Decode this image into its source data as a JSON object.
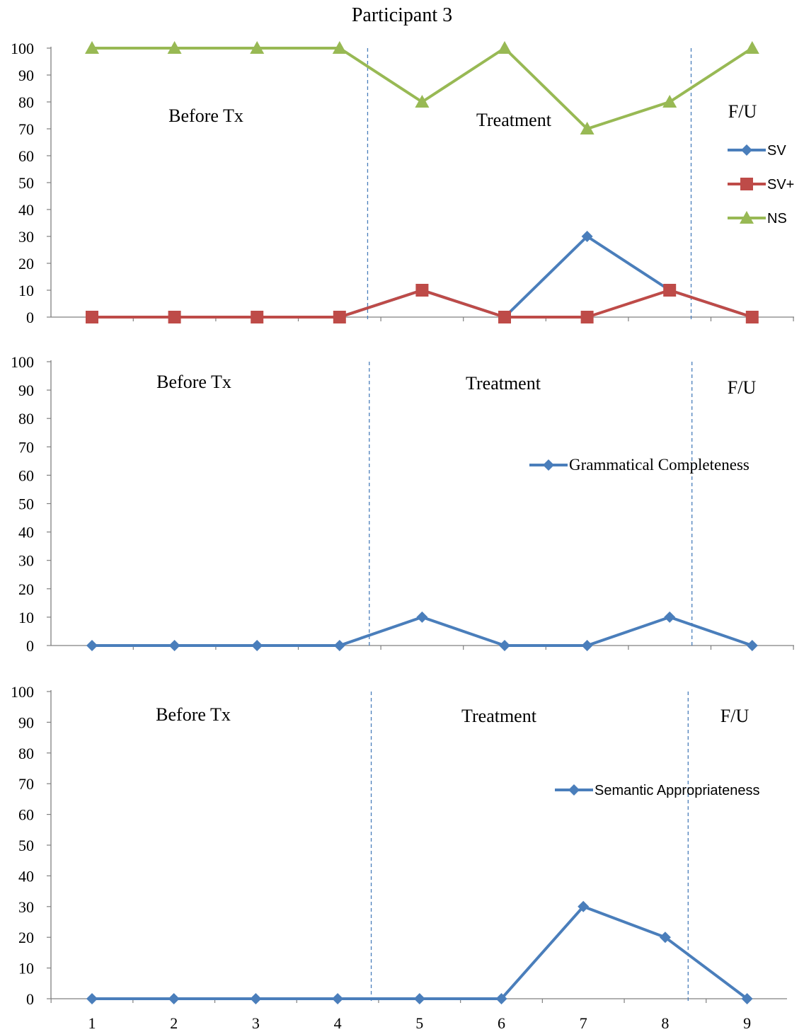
{
  "chart_data": [
    {
      "type": "line",
      "title": "Participant 3",
      "x": [
        1,
        2,
        3,
        4,
        5,
        6,
        7,
        8,
        9
      ],
      "ylim": [
        0,
        100
      ],
      "yticks": [
        0,
        10,
        20,
        30,
        40,
        50,
        60,
        70,
        80,
        90,
        100
      ],
      "show_xtick_labels": false,
      "phase_labels": [
        "Before Tx",
        "Treatment",
        "F/U"
      ],
      "phase_dividers_x": [
        4.34,
        8.26
      ],
      "legend_position": "right",
      "series": [
        {
          "name": "SV",
          "color": "#4a7ebb",
          "marker": "diamond",
          "values": [
            0,
            0,
            0,
            0,
            10,
            0,
            30,
            10,
            0
          ]
        },
        {
          "name": "SV+",
          "color": "#be4b48",
          "marker": "square",
          "values": [
            0,
            0,
            0,
            0,
            10,
            0,
            0,
            10,
            0
          ]
        },
        {
          "name": "NS",
          "color": "#98b954",
          "marker": "triangle",
          "values": [
            100,
            100,
            100,
            100,
            80,
            100,
            70,
            80,
            100
          ]
        }
      ]
    },
    {
      "type": "line",
      "x": [
        1,
        2,
        3,
        4,
        5,
        6,
        7,
        8,
        9
      ],
      "ylim": [
        0,
        100
      ],
      "yticks": [
        0,
        10,
        20,
        30,
        40,
        50,
        60,
        70,
        80,
        90,
        100
      ],
      "show_xtick_labels": false,
      "phase_labels": [
        "Before Tx",
        "Treatment",
        "F/U"
      ],
      "phase_dividers_x": [
        4.36,
        8.27
      ],
      "legend_position": "right",
      "series": [
        {
          "name": "Grammatical Completeness",
          "color": "#4a7ebb",
          "marker": "diamond",
          "values": [
            0,
            0,
            0,
            0,
            10,
            0,
            0,
            10,
            0
          ]
        }
      ]
    },
    {
      "type": "line",
      "x": [
        1,
        2,
        3,
        4,
        5,
        6,
        7,
        8,
        9
      ],
      "ylim": [
        0,
        100
      ],
      "yticks": [
        0,
        10,
        20,
        30,
        40,
        50,
        60,
        70,
        80,
        90,
        100
      ],
      "show_xtick_labels": true,
      "phase_labels": [
        "Before Tx",
        "Treatment",
        "F/U"
      ],
      "phase_dividers_x": [
        4.41,
        8.28
      ],
      "legend_position": "right",
      "series": [
        {
          "name": "Semantic Appropriateness",
          "color": "#4a7ebb",
          "marker": "diamond",
          "values": [
            0,
            0,
            0,
            0,
            0,
            0,
            30,
            20,
            0
          ]
        }
      ]
    }
  ]
}
